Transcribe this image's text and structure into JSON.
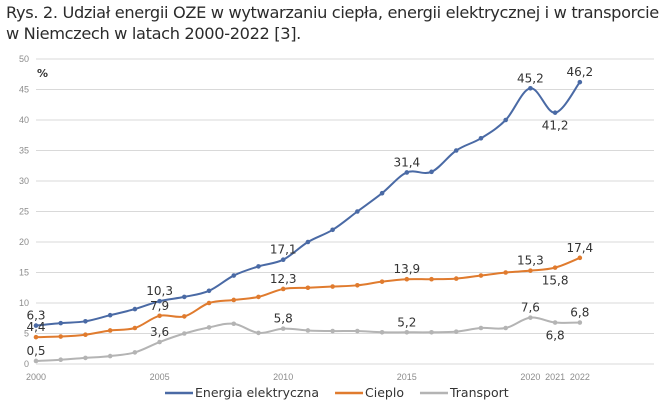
{
  "caption": "Rys. 2. Udział energii OZE w wytwarzaniu ciepła, energii elektrycznej i w transporcie w Niemczech w latach 2000-2022 [3].",
  "chart_data": {
    "type": "line",
    "title": "Udział energii OZE w wytwarzaniu ciepła, energii elektrycznej i w transporcie w Niemczech w latach 2000-2022",
    "xlabel": "",
    "ylabel": "%",
    "x": [
      2000,
      2001,
      2002,
      2003,
      2004,
      2005,
      2006,
      2007,
      2008,
      2009,
      2010,
      2011,
      2012,
      2013,
      2014,
      2015,
      2016,
      2017,
      2018,
      2019,
      2020,
      2021,
      2022
    ],
    "xlim": [
      2000,
      2025
    ],
    "ylim": [
      0,
      50
    ],
    "xticks": [
      "2000",
      "2005",
      "2010",
      "2015",
      "2020",
      "2021",
      "2022"
    ],
    "xtick_values": [
      2000,
      2005,
      2010,
      2015,
      2020,
      2021,
      2022
    ],
    "yticks": [
      0,
      5,
      10,
      15,
      20,
      25,
      30,
      35,
      40,
      45,
      50
    ],
    "grid": true,
    "legend_position": "bottom",
    "series": [
      {
        "name": "Energia elektryczna",
        "color": "#4a6aa5",
        "values": [
          6.3,
          6.7,
          7.0,
          8.0,
          9.0,
          10.3,
          11.0,
          12.0,
          14.5,
          16.0,
          17.1,
          20.0,
          22.0,
          25.0,
          28.0,
          31.4,
          31.5,
          35.0,
          37.0,
          40.0,
          45.2,
          41.2,
          46.2
        ],
        "labels": [
          {
            "x": 2000,
            "text": "6,3",
            "pos": "above"
          },
          {
            "x": 2005,
            "text": "10,3",
            "pos": "above"
          },
          {
            "x": 2010,
            "text": "17,1",
            "pos": "above"
          },
          {
            "x": 2015,
            "text": "31,4",
            "pos": "above"
          },
          {
            "x": 2020,
            "text": "45,2",
            "pos": "above"
          },
          {
            "x": 2021,
            "text": "41,2",
            "pos": "below"
          },
          {
            "x": 2022,
            "text": "46,2",
            "pos": "above"
          }
        ]
      },
      {
        "name": "Cieplo",
        "color": "#e07b2e",
        "values": [
          4.4,
          4.5,
          4.8,
          5.5,
          5.9,
          7.9,
          7.8,
          10.0,
          10.5,
          11.0,
          12.3,
          12.5,
          12.7,
          12.9,
          13.5,
          13.9,
          13.9,
          14.0,
          14.5,
          15.0,
          15.3,
          15.8,
          17.4
        ],
        "labels": [
          {
            "x": 2000,
            "text": "4,4",
            "pos": "above"
          },
          {
            "x": 2005,
            "text": "7,9",
            "pos": "above"
          },
          {
            "x": 2010,
            "text": "12,3",
            "pos": "above"
          },
          {
            "x": 2015,
            "text": "13,9",
            "pos": "above"
          },
          {
            "x": 2020,
            "text": "15,3",
            "pos": "above"
          },
          {
            "x": 2021,
            "text": "15,8",
            "pos": "below"
          },
          {
            "x": 2022,
            "text": "17,4",
            "pos": "above"
          }
        ]
      },
      {
        "name": "Transport",
        "color": "#b4b4b4",
        "values": [
          0.5,
          0.7,
          1.0,
          1.3,
          1.9,
          3.6,
          5.0,
          6.0,
          6.6,
          5.1,
          5.8,
          5.5,
          5.4,
          5.4,
          5.2,
          5.2,
          5.2,
          5.3,
          5.9,
          5.9,
          7.6,
          6.8,
          6.8
        ],
        "labels": [
          {
            "x": 2000,
            "text": "0,5",
            "pos": "above"
          },
          {
            "x": 2005,
            "text": "3,6",
            "pos": "above"
          },
          {
            "x": 2010,
            "text": "5,8",
            "pos": "above"
          },
          {
            "x": 2015,
            "text": "5,2",
            "pos": "above"
          },
          {
            "x": 2020,
            "text": "7,6",
            "pos": "above"
          },
          {
            "x": 2021,
            "text": "6,8",
            "pos": "below"
          },
          {
            "x": 2022,
            "text": "6,8",
            "pos": "above"
          }
        ]
      }
    ]
  }
}
